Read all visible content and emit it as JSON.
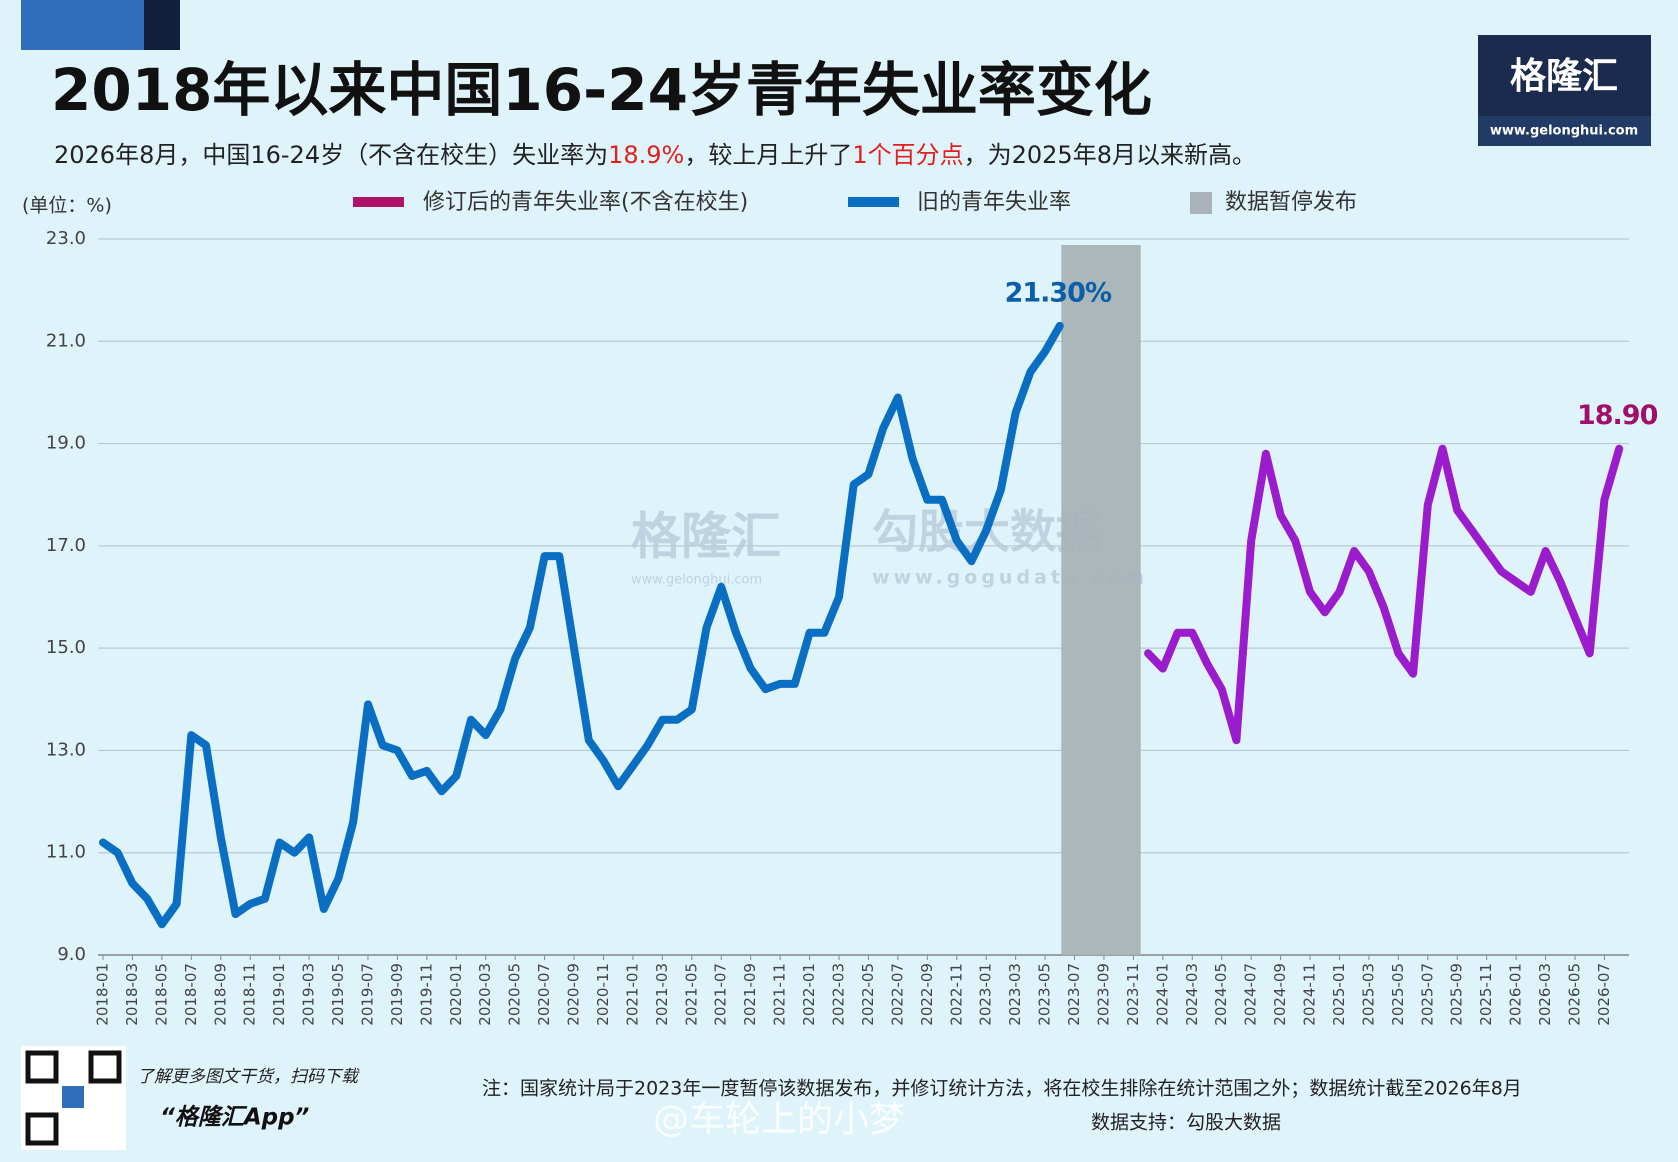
{
  "chart_data": {
    "type": "line",
    "title": "2018年以来中国16-24岁青年失业率变化",
    "subtitle": [
      {
        "text": "2026年8月，中国16-24岁（不含在校生）失业率为",
        "color": "#222222"
      },
      {
        "text": "18.9%",
        "color": "#e0201e"
      },
      {
        "text": "，较上月上升了",
        "color": "#222222"
      },
      {
        "text": "1个百分点",
        "color": "#e0201e"
      },
      {
        "text": "，为2025年8月以来新高。",
        "color": "#222222"
      }
    ],
    "y_unit_label": "(单位：%)",
    "categories": [
      "2018-01",
      null,
      "2018-03",
      null,
      "2018-05",
      null,
      "2018-07",
      null,
      "2018-09",
      null,
      "2018-11",
      null,
      "2019-01",
      null,
      "2019-03",
      null,
      "2019-05",
      null,
      "2019-07",
      null,
      "2019-09",
      null,
      "2019-11",
      null,
      "2020-01",
      null,
      "2020-03",
      null,
      "2020-05",
      null,
      "2020-07",
      null,
      "2020-09",
      null,
      "2020-11",
      null,
      "2021-01",
      null,
      "2021-03",
      null,
      "2021-05",
      null,
      "2021-07",
      null,
      "2021-09",
      null,
      "2021-11",
      null,
      "2022-01",
      null,
      "2022-03",
      null,
      "2022-05",
      null,
      "2022-07",
      null,
      "2022-09",
      null,
      "2022-11",
      null,
      "2023-01",
      null,
      "2023-03",
      null,
      "2023-05",
      null,
      "2023-07",
      null,
      "2023-09",
      null,
      "2023-11",
      null,
      "2024-01",
      null,
      "2024-03",
      null,
      "2024-05",
      null,
      "2024-07",
      null,
      "2024-09",
      null,
      "2024-11",
      null,
      "2025-01",
      null,
      "2025-03",
      null,
      "2025-05",
      null,
      "2025-07",
      null,
      "2025-09",
      null,
      "2025-11",
      null,
      "2026-01",
      null,
      "2026-03",
      null,
      "2026-05",
      null,
      "2026-07",
      null
    ],
    "series": [
      {
        "name": "修订后的青年失业率(不含在校生)",
        "color": "#9a1ccc",
        "legend_color": "#b0126a",
        "label_color": "#a0106a",
        "values": [
          null,
          null,
          null,
          null,
          null,
          null,
          null,
          null,
          null,
          null,
          null,
          null,
          null,
          null,
          null,
          null,
          null,
          null,
          null,
          null,
          null,
          null,
          null,
          null,
          null,
          null,
          null,
          null,
          null,
          null,
          null,
          null,
          null,
          null,
          null,
          null,
          null,
          null,
          null,
          null,
          null,
          null,
          null,
          null,
          null,
          null,
          null,
          null,
          null,
          null,
          null,
          null,
          null,
          null,
          null,
          null,
          null,
          null,
          null,
          null,
          null,
          null,
          null,
          null,
          null,
          null,
          null,
          null,
          null,
          null,
          null,
          14.9,
          14.6,
          15.3,
          15.3,
          14.7,
          14.2,
          13.2,
          17.1,
          18.8,
          17.6,
          17.1,
          16.1,
          15.7,
          16.1,
          16.9,
          16.5,
          15.8,
          14.9,
          14.5,
          17.8,
          18.9,
          17.7,
          17.3,
          16.9,
          16.5,
          16.3,
          16.1,
          16.9,
          16.3,
          15.6,
          14.9,
          17.9,
          18.9
        ],
        "value_labels": [
          null,
          null,
          null,
          null,
          null,
          null,
          null,
          null,
          null,
          null,
          null,
          null,
          null,
          null,
          null,
          null,
          null,
          null,
          null,
          null,
          null,
          null,
          null,
          null,
          null,
          null,
          null,
          null,
          null,
          null,
          null,
          null,
          null,
          null,
          null,
          null,
          null,
          null,
          null,
          null,
          null,
          null,
          null,
          null,
          null,
          null,
          null,
          null,
          null,
          null,
          null,
          null,
          null,
          null,
          null,
          null,
          null,
          null,
          null,
          null,
          null,
          null,
          null,
          null,
          null,
          null,
          null,
          null,
          null,
          null,
          null,
          null,
          null,
          null,
          null,
          null,
          null,
          null,
          null,
          null,
          null,
          null,
          null,
          null,
          null,
          null,
          null,
          null,
          null,
          null,
          null,
          null,
          null,
          null,
          null,
          null,
          null,
          null,
          null,
          null,
          null,
          null,
          null,
          "18.90"
        ]
      },
      {
        "name": "旧的青年失业率",
        "color": "#0a6fc2",
        "legend_color": "#0a6fc2",
        "label_color": "#0a5fa8",
        "values": [
          11.2,
          11.0,
          10.4,
          10.1,
          9.6,
          10.0,
          13.3,
          13.1,
          11.3,
          9.8,
          10.0,
          10.1,
          11.2,
          11.0,
          11.3,
          9.9,
          10.5,
          11.6,
          13.9,
          13.1,
          13.0,
          12.5,
          12.6,
          12.2,
          12.5,
          13.6,
          13.3,
          13.8,
          14.8,
          15.4,
          16.8,
          16.8,
          15.0,
          13.2,
          12.8,
          12.3,
          12.7,
          13.1,
          13.6,
          13.6,
          13.8,
          15.4,
          16.2,
          15.3,
          14.6,
          14.2,
          14.3,
          14.3,
          15.3,
          15.3,
          16.0,
          18.2,
          18.4,
          19.3,
          19.9,
          18.7,
          17.9,
          17.9,
          17.1,
          16.7,
          17.3,
          18.1,
          19.6,
          20.4,
          20.8,
          21.3,
          null,
          null,
          null,
          null,
          null,
          null,
          null,
          null,
          null,
          null,
          null,
          null,
          null,
          null,
          null,
          null,
          null,
          null,
          null,
          null,
          null,
          null,
          null,
          null,
          null,
          null,
          null,
          null,
          null,
          null,
          null,
          null,
          null,
          null,
          null,
          null,
          null,
          null
        ],
        "value_labels": [
          null,
          null,
          null,
          null,
          null,
          null,
          null,
          null,
          null,
          null,
          null,
          null,
          null,
          null,
          null,
          null,
          null,
          null,
          null,
          null,
          null,
          null,
          null,
          null,
          null,
          null,
          null,
          null,
          null,
          null,
          null,
          null,
          null,
          null,
          null,
          null,
          null,
          null,
          null,
          null,
          null,
          null,
          null,
          null,
          null,
          null,
          null,
          null,
          null,
          null,
          null,
          null,
          null,
          null,
          null,
          null,
          null,
          null,
          null,
          null,
          null,
          null,
          null,
          null,
          null,
          "21.30%",
          null,
          null,
          null,
          null,
          null,
          null,
          null,
          null,
          null,
          null,
          null,
          null,
          null,
          null,
          null,
          null,
          null,
          null,
          null,
          null,
          null,
          null,
          null,
          null,
          null,
          null,
          null,
          null,
          null,
          null,
          null,
          null,
          null,
          null,
          null,
          null,
          null,
          null
        ]
      }
    ],
    "shaded_span": {
      "name": "数据暂停发布",
      "color": "#a9b3b8",
      "from": "2023-07",
      "to": "2023-11"
    },
    "ylim": [
      9,
      23
    ],
    "yticks": [
      {
        "value": 9,
        "label": "9.0"
      },
      {
        "value": 11,
        "label": "11.0"
      },
      {
        "value": 13,
        "label": "13.0"
      },
      {
        "value": 15,
        "label": "15.0"
      },
      {
        "value": 17,
        "label": "17.0"
      },
      {
        "value": 19,
        "label": "19.0"
      },
      {
        "value": 21,
        "label": "21.0"
      },
      {
        "value": 23,
        "label": "23.0"
      }
    ],
    "grid": true,
    "note": "注：国家统计局于2023年一度暂停该数据发布，并修订统计方法，将在校生排除在统计范围之外；数据统计截至2026年8月",
    "source": "数据支持：勾股大数据",
    "brand": {
      "name": "格隆汇",
      "url": "www.gelonghui.com",
      "qr_caption": "了解更多图文干货，扫码下载",
      "app": "“格隆汇App”"
    },
    "watermarks": [
      "格隆汇",
      "www.gelonghui.com",
      "勾股大数据",
      "www.gogudata.com",
      "@车轮上的小梦"
    ]
  }
}
